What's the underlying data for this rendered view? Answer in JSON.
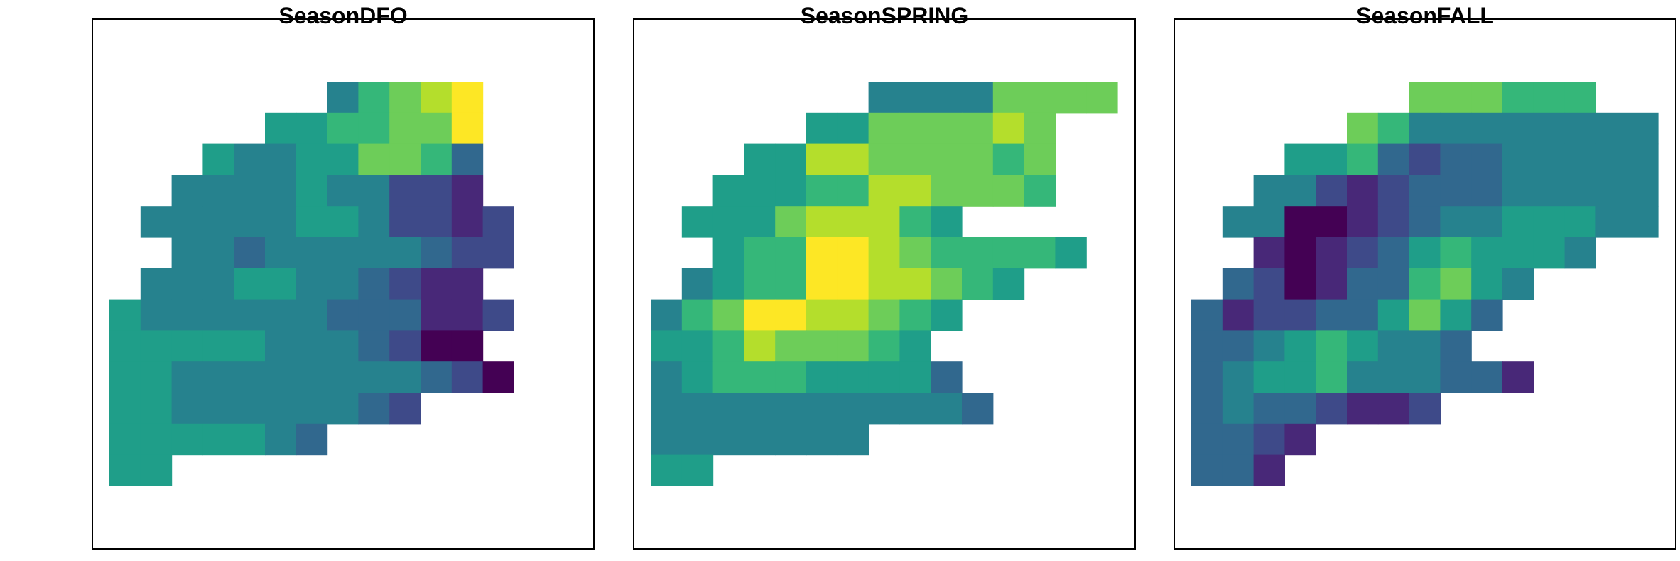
{
  "chart_data": {
    "type": "heatmap",
    "colormap": "viridis",
    "palette": [
      "#440154",
      "#482878",
      "#3E4A89",
      "#31688E",
      "#26828E",
      "#1F9E89",
      "#35B779",
      "#6DCD59",
      "#B4DE2C",
      "#FDE725"
    ],
    "grid": false,
    "legend": "none",
    "columns": 15,
    "rows": 13,
    "panels": [
      {
        "title": "SeasonDFO",
        "grid_levels": [
          "..........46789",
          "........5566779",
          "......544557763",
          ".....4444544221",
          "....444445542212",
          "......44344444322",
          ".....44455443211",
          "....5444444333112",
          "...555554443200",
          "...5544444444320",
          "...5544444432",
          "...5555543",
          "...55"
        ]
      },
      {
        "title": "SeasonSPRING",
        "grid_levels": [
          "..........44447777",
          ".........55777787",
          "........5588777767",
          "......55566887776",
          ".....555788865",
          "....566998766665",
          "...45669988765",
          "..4679988765",
          ".556877765",
          ".4566655553",
          "44444444443",
          "4444444",
          "55"
        ]
      },
      {
        "title": "SeasonFALL",
        "grid_levels": [
          "....................."
        ]
      }
    ]
  }
}
